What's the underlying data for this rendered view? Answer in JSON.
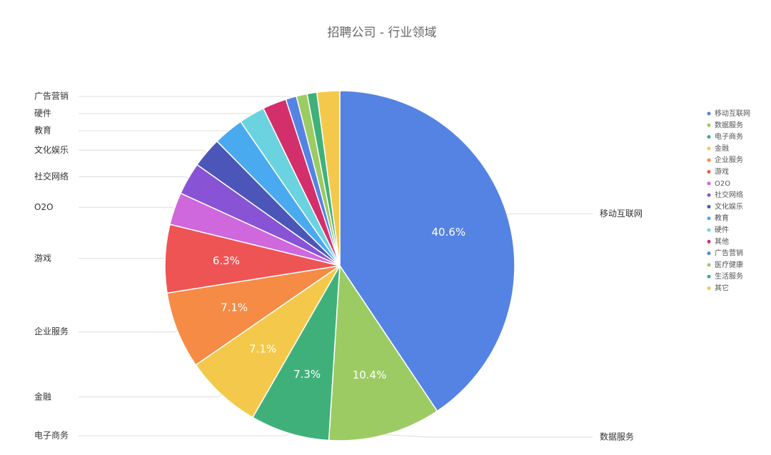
{
  "chart_data": {
    "type": "pie",
    "title": "招聘公司 - 行业领域",
    "categories": [
      "移动互联网",
      "数据服务",
      "电子商务",
      "金融",
      "企业服务",
      "游戏",
      "O2O",
      "社交网络",
      "文化娱乐",
      "教育",
      "硬件",
      "其他",
      "广告营销",
      "医疗健康",
      "生活服务",
      "其它"
    ],
    "values": [
      40.6,
      10.4,
      7.3,
      7.1,
      7.1,
      6.3,
      3.0,
      3.0,
      2.8,
      2.8,
      2.4,
      2.2,
      1.0,
      1.0,
      0.9,
      2.1
    ],
    "value_labels": [
      "40.6%",
      "10.4%",
      "7.3%",
      "7.1%",
      "7.1%",
      "6.3%",
      null,
      null,
      null,
      null,
      null,
      null,
      null,
      null,
      null,
      null
    ],
    "colors": [
      "#5583e3",
      "#9ccb63",
      "#40b07a",
      "#f4c94b",
      "#f58b45",
      "#ef5454",
      "#cf67dd",
      "#8953d6",
      "#4c55b8",
      "#4aaaf0",
      "#6ad3df",
      "#d3306b",
      "#5583e3",
      "#9ccb63",
      "#40b07a",
      "#f4c94b"
    ],
    "outer_label": [
      true,
      true,
      true,
      true,
      true,
      true,
      true,
      true,
      true,
      true,
      true,
      false,
      true,
      false,
      false,
      false
    ],
    "legend": "right"
  }
}
